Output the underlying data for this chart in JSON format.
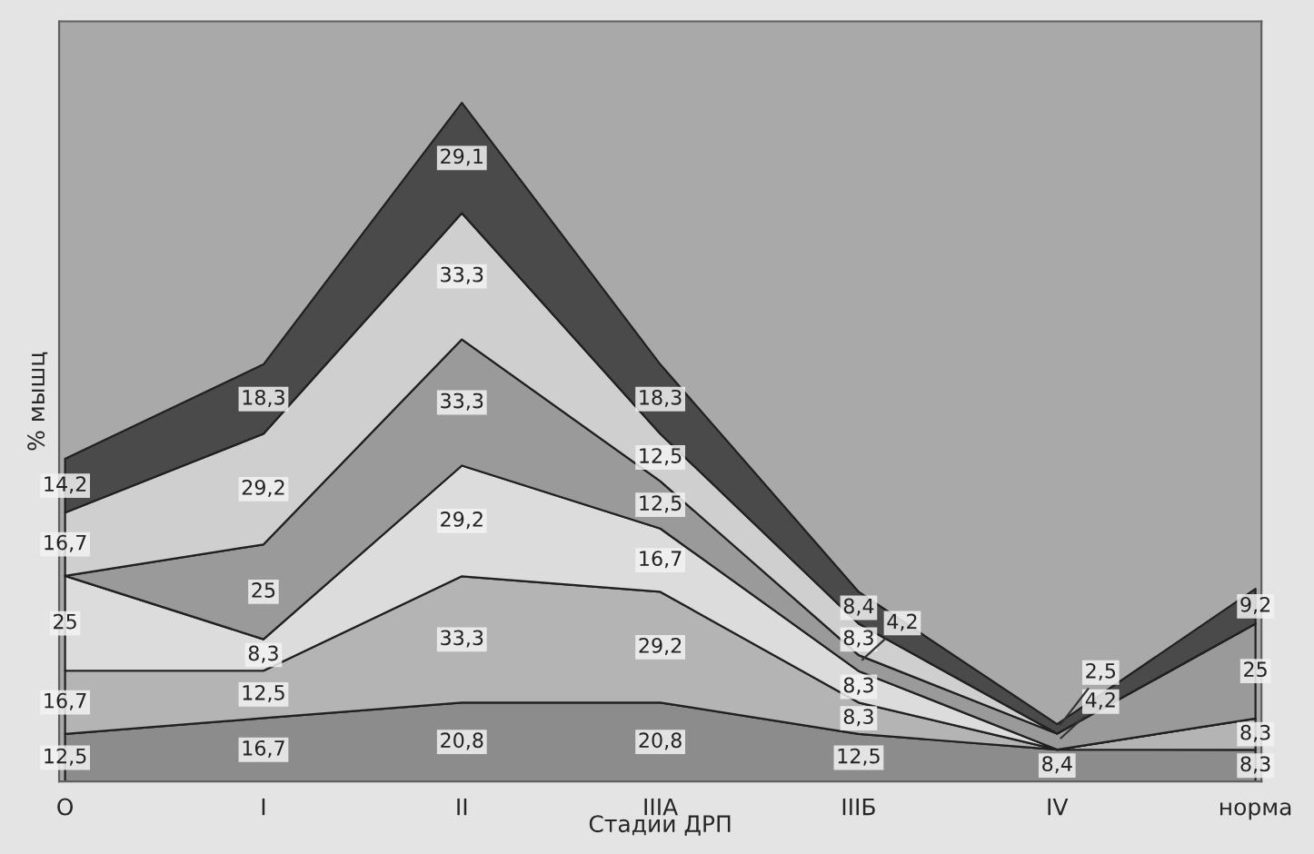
{
  "chart_data": {
    "type": "area",
    "stacked": true,
    "xlabel": "Стадии ДРП",
    "ylabel": "% мышц",
    "categories": [
      "O",
      "I",
      "II",
      "IIIA",
      "IIIБ",
      "IV",
      "норма"
    ],
    "series": [
      {
        "color": "#8c8c8c",
        "values": [
          12.5,
          16.7,
          20.8,
          20.8,
          12.5,
          8.4,
          8.3
        ],
        "value_labels": [
          "12,5",
          "16,7",
          "20,8",
          "20,8",
          "12,5",
          "8,4",
          "8,3"
        ]
      },
      {
        "color": "#b4b4b4",
        "values": [
          16.7,
          12.5,
          33.3,
          29.2,
          8.3,
          0,
          8.3
        ],
        "value_labels": [
          "16,7",
          "12,5",
          "33,3",
          "29,2",
          "8,3",
          null,
          "8,3"
        ]
      },
      {
        "color": "#dcdcdc",
        "values": [
          25,
          8.3,
          29.2,
          16.7,
          8.3,
          0,
          0
        ],
        "value_labels": [
          "25",
          "8,3",
          "29,2",
          "16,7",
          "8,3",
          null,
          null
        ]
      },
      {
        "color": "#9a9a9a",
        "values": [
          0,
          25,
          33.3,
          12.5,
          4.2,
          4.2,
          25
        ],
        "value_labels": [
          null,
          "25",
          "33,3",
          "12,5",
          "4,2",
          "4,2",
          "25"
        ]
      },
      {
        "color": "#cfcfcf",
        "values": [
          16.7,
          29.2,
          33.3,
          12.5,
          8.3,
          0,
          0
        ],
        "value_labels": [
          "16,7",
          "29,2",
          "33,3",
          "12,5",
          "8,3",
          null,
          null
        ]
      },
      {
        "color": "#4a4a4a",
        "values": [
          14.2,
          18.3,
          29.1,
          18.3,
          8.4,
          2.5,
          9.2
        ],
        "value_labels": [
          "14,2",
          "18,3",
          "29,1",
          "18,3",
          "8,4",
          "2,5",
          "9,2"
        ]
      }
    ],
    "grid": false
  }
}
